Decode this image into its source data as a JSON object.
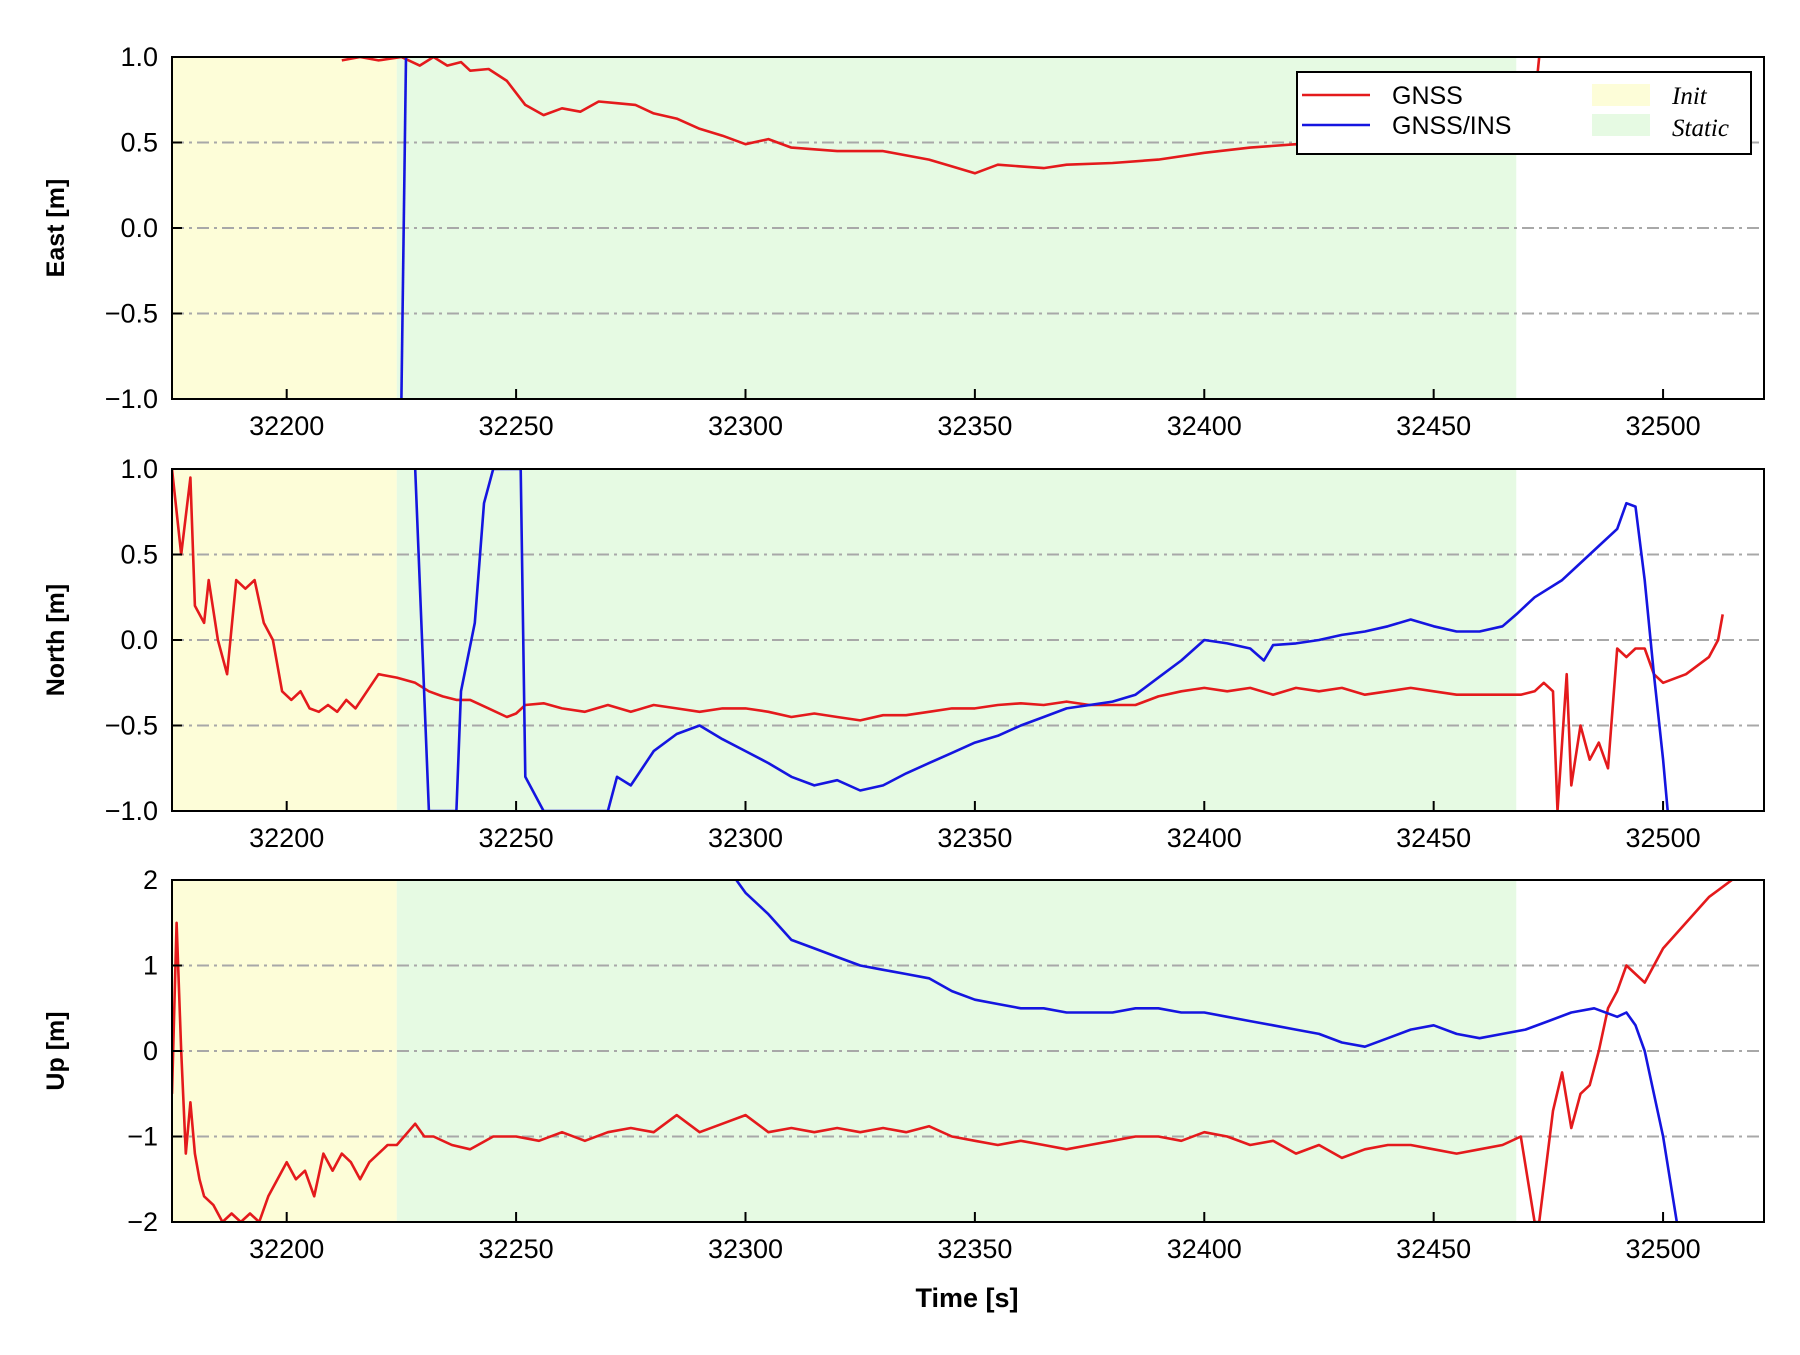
{
  "colors": {
    "gnss": "#e41a1c",
    "gnss_ins": "#1515e0",
    "init_band": "#fdfdd8",
    "static_band": "#e6fae3",
    "grid": "#a8a8a8"
  },
  "legend": {
    "placement": "upper-right of East panel",
    "gnss_label": "GNSS",
    "gnss_ins_label": "GNSS/INS",
    "init_label": "Init",
    "static_label": "Static"
  },
  "xlabel": "Time [s]",
  "chart_data": [
    {
      "type": "line",
      "ylabel": "East [m]",
      "xlim": [
        32175,
        32522
      ],
      "ylim": [
        -1.0,
        1.0
      ],
      "xticks": [
        "32200",
        "32250",
        "32300",
        "32350",
        "32400",
        "32450",
        "32500"
      ],
      "yticks": [
        "−1.0",
        "−0.5",
        "0.0",
        "0.5",
        "1.0"
      ],
      "ytick_values": [
        -1.0,
        -0.5,
        0.0,
        0.5,
        1.0
      ],
      "grid": "horizontal dash-dot",
      "regions": [
        {
          "name": "Init",
          "x": [
            32175,
            32224
          ]
        },
        {
          "name": "Static",
          "x": [
            32224,
            32468
          ]
        }
      ],
      "series": [
        {
          "name": "GNSS",
          "x": [
            32212,
            32216,
            32220,
            32225,
            32229,
            32232,
            32235,
            32238,
            32240,
            32244,
            32248,
            32252,
            32256,
            32260,
            32264,
            32268,
            32272,
            32276,
            32280,
            32285,
            32290,
            32295,
            32300,
            32305,
            32310,
            32320,
            32330,
            32340,
            32345,
            32350,
            32355,
            32360,
            32365,
            32370,
            32380,
            32390,
            32400,
            32410,
            32420,
            32430,
            32440,
            32450,
            32460,
            32465,
            32468,
            32471,
            32473
          ],
          "values": [
            0.98,
            1.0,
            0.98,
            1.0,
            0.95,
            1.0,
            0.95,
            0.97,
            0.92,
            0.93,
            0.86,
            0.72,
            0.66,
            0.7,
            0.68,
            0.74,
            0.73,
            0.72,
            0.67,
            0.64,
            0.58,
            0.54,
            0.49,
            0.52,
            0.47,
            0.45,
            0.45,
            0.4,
            0.36,
            0.32,
            0.37,
            0.36,
            0.35,
            0.37,
            0.38,
            0.4,
            0.44,
            0.47,
            0.49,
            0.45,
            0.46,
            0.44,
            0.46,
            0.45,
            0.44,
            0.46,
            1.0
          ]
        },
        {
          "name": "GNSS/INS",
          "x": [
            32225,
            32226
          ],
          "values": [
            -1.0,
            1.0
          ]
        }
      ]
    },
    {
      "type": "line",
      "ylabel": "North [m]",
      "xlim": [
        32175,
        32522
      ],
      "ylim": [
        -1.0,
        1.0
      ],
      "xticks": [
        "32200",
        "32250",
        "32300",
        "32350",
        "32400",
        "32450",
        "32500"
      ],
      "yticks": [
        "−1.0",
        "−0.5",
        "0.0",
        "0.5",
        "1.0"
      ],
      "ytick_values": [
        -1.0,
        -0.5,
        0.0,
        0.5,
        1.0
      ],
      "grid": "horizontal dash-dot",
      "regions": [
        {
          "name": "Init",
          "x": [
            32175,
            32224
          ]
        },
        {
          "name": "Static",
          "x": [
            32224,
            32468
          ]
        }
      ],
      "series": [
        {
          "name": "GNSS",
          "x": [
            32175,
            32177,
            32179,
            32180,
            32182,
            32183,
            32185,
            32187,
            32189,
            32191,
            32193,
            32195,
            32197,
            32199,
            32201,
            32203,
            32205,
            32207,
            32209,
            32211,
            32213,
            32215,
            32217,
            32220,
            32224,
            32228,
            32231,
            32234,
            32237,
            32240,
            32244,
            32248,
            32250,
            32252,
            32256,
            32260,
            32265,
            32270,
            32275,
            32280,
            32285,
            32290,
            32295,
            32300,
            32305,
            32310,
            32315,
            32320,
            32325,
            32330,
            32335,
            32340,
            32345,
            32350,
            32355,
            32360,
            32365,
            32370,
            32375,
            32380,
            32385,
            32390,
            32395,
            32400,
            32405,
            32410,
            32415,
            32420,
            32425,
            32430,
            32435,
            32440,
            32445,
            32450,
            32455,
            32460,
            32465,
            32469,
            32472,
            32474,
            32476,
            32477,
            32479,
            32480,
            32482,
            32484,
            32486,
            32488,
            32490,
            32492,
            32494,
            32496,
            32498,
            32500,
            32505,
            32510,
            32512,
            32513
          ],
          "values": [
            1.0,
            0.5,
            0.95,
            0.2,
            0.1,
            0.35,
            0.0,
            -0.2,
            0.35,
            0.3,
            0.35,
            0.1,
            0.0,
            -0.3,
            -0.35,
            -0.3,
            -0.4,
            -0.42,
            -0.38,
            -0.42,
            -0.35,
            -0.4,
            -0.32,
            -0.2,
            -0.22,
            -0.25,
            -0.3,
            -0.33,
            -0.35,
            -0.35,
            -0.4,
            -0.45,
            -0.43,
            -0.38,
            -0.37,
            -0.4,
            -0.42,
            -0.38,
            -0.42,
            -0.38,
            -0.4,
            -0.42,
            -0.4,
            -0.4,
            -0.42,
            -0.45,
            -0.43,
            -0.45,
            -0.47,
            -0.44,
            -0.44,
            -0.42,
            -0.4,
            -0.4,
            -0.38,
            -0.37,
            -0.38,
            -0.36,
            -0.38,
            -0.38,
            -0.38,
            -0.33,
            -0.3,
            -0.28,
            -0.3,
            -0.28,
            -0.32,
            -0.28,
            -0.3,
            -0.28,
            -0.32,
            -0.3,
            -0.28,
            -0.3,
            -0.32,
            -0.32,
            -0.32,
            -0.32,
            -0.3,
            -0.25,
            -0.3,
            -1.0,
            -0.2,
            -0.85,
            -0.5,
            -0.7,
            -0.6,
            -0.75,
            -0.05,
            -0.1,
            -0.05,
            -0.05,
            -0.2,
            -0.25,
            -0.2,
            -0.1,
            0.0,
            0.15
          ]
        },
        {
          "name": "GNSS/INS",
          "x": [
            32228,
            32231,
            32237,
            32238,
            32241,
            32243,
            32245,
            32248,
            32251,
            32252,
            32256,
            32270,
            32272,
            32275,
            32280,
            32285,
            32290,
            32295,
            32300,
            32305,
            32310,
            32315,
            32320,
            32325,
            32330,
            32335,
            32340,
            32345,
            32350,
            32355,
            32360,
            32365,
            32370,
            32375,
            32380,
            32385,
            32390,
            32395,
            32400,
            32405,
            32410,
            32413,
            32415,
            32420,
            32425,
            32430,
            32435,
            32440,
            32445,
            32450,
            32455,
            32460,
            32465,
            32468,
            32472,
            32478,
            32482,
            32486,
            32490,
            32492,
            32494,
            32496,
            32498,
            32500,
            32501
          ],
          "values": [
            1.0,
            -1.0,
            -1.0,
            -0.3,
            0.1,
            0.8,
            1.0,
            1.0,
            1.0,
            -0.8,
            -1.0,
            -1.0,
            -0.8,
            -0.85,
            -0.65,
            -0.55,
            -0.5,
            -0.58,
            -0.65,
            -0.72,
            -0.8,
            -0.85,
            -0.82,
            -0.88,
            -0.85,
            -0.78,
            -0.72,
            -0.66,
            -0.6,
            -0.56,
            -0.5,
            -0.45,
            -0.4,
            -0.38,
            -0.36,
            -0.32,
            -0.22,
            -0.12,
            0.0,
            -0.02,
            -0.05,
            -0.12,
            -0.03,
            -0.02,
            0.0,
            0.03,
            0.05,
            0.08,
            0.12,
            0.08,
            0.05,
            0.05,
            0.08,
            0.15,
            0.25,
            0.35,
            0.45,
            0.55,
            0.65,
            0.8,
            0.78,
            0.35,
            -0.2,
            -0.7,
            -1.0
          ]
        }
      ]
    },
    {
      "type": "line",
      "ylabel": "Up [m]",
      "xlim": [
        32175,
        32522
      ],
      "ylim": [
        -2,
        2
      ],
      "xticks": [
        "32200",
        "32250",
        "32300",
        "32350",
        "32400",
        "32450",
        "32500"
      ],
      "yticks": [
        "−2",
        "−1",
        "0",
        "1",
        "2"
      ],
      "ytick_values": [
        -2,
        -1,
        0,
        1,
        2
      ],
      "grid": "horizontal dash-dot",
      "regions": [
        {
          "name": "Init",
          "x": [
            32175,
            32224
          ]
        },
        {
          "name": "Static",
          "x": [
            32224,
            32468
          ]
        }
      ],
      "series": [
        {
          "name": "GNSS",
          "x": [
            32175,
            32176,
            32177,
            32178,
            32179,
            32180,
            32181,
            32182,
            32184,
            32186,
            32188,
            32190,
            32192,
            32194,
            32196,
            32198,
            32200,
            32202,
            32204,
            32206,
            32208,
            32210,
            32212,
            32214,
            32216,
            32218,
            32220,
            32222,
            32224,
            32228,
            32230,
            32232,
            32236,
            32240,
            32245,
            32250,
            32255,
            32260,
            32265,
            32270,
            32275,
            32280,
            32285,
            32290,
            32295,
            32300,
            32305,
            32310,
            32315,
            32320,
            32325,
            32330,
            32335,
            32340,
            32345,
            32350,
            32355,
            32360,
            32365,
            32370,
            32375,
            32380,
            32385,
            32390,
            32395,
            32400,
            32405,
            32410,
            32415,
            32420,
            32425,
            32430,
            32435,
            32440,
            32445,
            32450,
            32455,
            32460,
            32465,
            32469,
            32472,
            32473,
            32476,
            32478,
            32480,
            32482,
            32484,
            32486,
            32488,
            32490,
            32492,
            32494,
            32496,
            32500,
            32505,
            32510,
            32515
          ],
          "values": [
            -0.5,
            1.5,
            0.0,
            -1.2,
            -0.6,
            -1.2,
            -1.5,
            -1.7,
            -1.8,
            -2.0,
            -1.9,
            -2.0,
            -1.9,
            -2.0,
            -1.7,
            -1.5,
            -1.3,
            -1.5,
            -1.4,
            -1.7,
            -1.2,
            -1.4,
            -1.2,
            -1.3,
            -1.5,
            -1.3,
            -1.2,
            -1.1,
            -1.1,
            -0.85,
            -1.0,
            -1.0,
            -1.1,
            -1.15,
            -1.0,
            -1.0,
            -1.05,
            -0.95,
            -1.05,
            -0.95,
            -0.9,
            -0.95,
            -0.75,
            -0.95,
            -0.85,
            -0.75,
            -0.95,
            -0.9,
            -0.95,
            -0.9,
            -0.95,
            -0.9,
            -0.95,
            -0.88,
            -1.0,
            -1.05,
            -1.1,
            -1.05,
            -1.1,
            -1.15,
            -1.1,
            -1.05,
            -1.0,
            -1.0,
            -1.05,
            -0.95,
            -1.0,
            -1.1,
            -1.05,
            -1.2,
            -1.1,
            -1.25,
            -1.15,
            -1.1,
            -1.1,
            -1.15,
            -1.2,
            -1.15,
            -1.1,
            -1.0,
            -2.0,
            -2.0,
            -0.7,
            -0.25,
            -0.9,
            -0.5,
            -0.4,
            0.0,
            0.5,
            0.7,
            1.0,
            0.9,
            0.8,
            1.2,
            1.5,
            1.8,
            2.0
          ]
        },
        {
          "name": "GNSS/INS",
          "x": [
            32298,
            32300,
            32305,
            32310,
            32315,
            32320,
            32325,
            32330,
            32335,
            32340,
            32345,
            32350,
            32355,
            32360,
            32365,
            32370,
            32375,
            32380,
            32385,
            32390,
            32395,
            32400,
            32405,
            32410,
            32415,
            32420,
            32425,
            32430,
            32435,
            32440,
            32445,
            32450,
            32455,
            32460,
            32465,
            32470,
            32475,
            32480,
            32485,
            32490,
            32492,
            32494,
            32496,
            32500,
            32503
          ],
          "values": [
            2.0,
            1.85,
            1.6,
            1.3,
            1.2,
            1.1,
            1.0,
            0.95,
            0.9,
            0.85,
            0.7,
            0.6,
            0.55,
            0.5,
            0.5,
            0.45,
            0.45,
            0.45,
            0.5,
            0.5,
            0.45,
            0.45,
            0.4,
            0.35,
            0.3,
            0.25,
            0.2,
            0.1,
            0.05,
            0.15,
            0.25,
            0.3,
            0.2,
            0.15,
            0.2,
            0.25,
            0.35,
            0.45,
            0.5,
            0.4,
            0.45,
            0.3,
            0.0,
            -1.0,
            -2.0
          ]
        }
      ]
    }
  ]
}
